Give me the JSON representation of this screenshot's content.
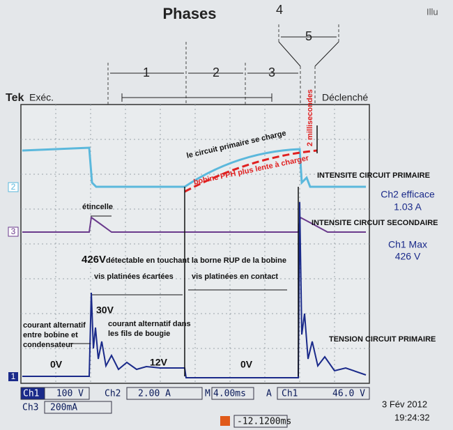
{
  "header": {
    "title": "Phases",
    "figure_number": "4",
    "corner_label": "Illu"
  },
  "phases": [
    "1",
    "2",
    "3",
    "5"
  ],
  "scope": {
    "brand": "Tek",
    "mode": "Exéc.",
    "trigger_status": "Déclenché",
    "channel_markers": [
      "2",
      "3",
      "1"
    ]
  },
  "annotations": {
    "duration": "2 millisecondes",
    "primary_charging": "le circuit primaire se charge",
    "pph_coil": "bobine PPH plus lente à charger",
    "primary_current": "INTENSITE CIRCUIT PRIMAIRE",
    "spark": "étincelle",
    "secondary_current": "INTENSITE CIRCUIT SECONDAIRE",
    "peak_voltage": "426V",
    "peak_note": "détectable en touchant la borne RUP de la bobine",
    "points_open": "vis platinées écartées",
    "points_closed": "vis platinées en contact",
    "ring_voltage": "30V",
    "ac_plug_wires": [
      "courant alternatif dans",
      "les fils de bougie"
    ],
    "ac_coil_condenser": [
      "courant alternatif",
      "entre bobine et",
      "condensateur"
    ],
    "primary_voltage": "TENSION CIRCUIT PRIMAIRE",
    "level_0v_left": "0V",
    "level_12v": "12V",
    "level_0v_right": "0V"
  },
  "measurements": {
    "ch2_label": "Ch2 efficace",
    "ch2_value": "1.03 A",
    "ch1_label": "Ch1 Max",
    "ch1_value": "426 V"
  },
  "status_bar": {
    "ch1": "Ch1",
    "ch1_scale": "100 V",
    "ch2": "Ch2",
    "ch2_scale": "2.00 A",
    "timebase_label": "M",
    "timebase": "4.00ms",
    "trigger_label": "A",
    "trigger_source": "Ch1",
    "trigger_level": "46.0 V",
    "ch3": "Ch3",
    "ch3_scale": "200mA",
    "offset": "-12.1200ms",
    "date": "3 Fév  2012",
    "time": "19:24:32"
  }
}
